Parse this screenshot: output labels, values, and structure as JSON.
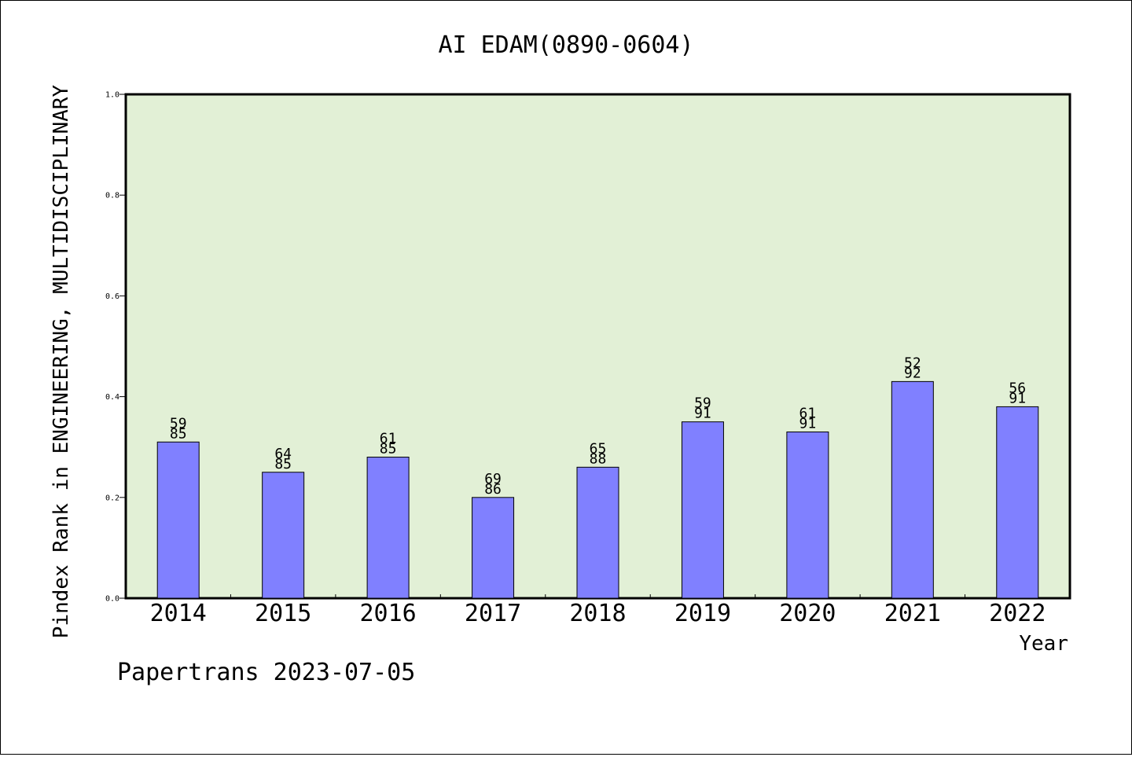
{
  "chart_data": {
    "type": "bar",
    "title": "AI EDAM(0890-0604)",
    "xlabel": "Year",
    "ylabel": "Pindex Rank in ENGINEERING, MULTIDISCIPLINARY",
    "footer": "Papertrans 2023-07-05",
    "ylim": [
      0,
      1.0
    ],
    "yticks": [
      "0.0",
      "0.2",
      "0.4",
      "0.6",
      "0.8",
      "1.0"
    ],
    "categories": [
      "2014",
      "2015",
      "2016",
      "2017",
      "2018",
      "2019",
      "2020",
      "2021",
      "2022"
    ],
    "values": [
      0.31,
      0.25,
      0.28,
      0.2,
      0.26,
      0.35,
      0.33,
      0.43,
      0.38
    ],
    "rank_labels": [
      "59",
      "64",
      "61",
      "69",
      "65",
      "59",
      "61",
      "52",
      "56"
    ],
    "total_labels": [
      "85",
      "85",
      "85",
      "86",
      "88",
      "91",
      "91",
      "92",
      "91"
    ],
    "grid": false,
    "colors": {
      "bar": "#8080ff",
      "plot_background": "#e2f0d6",
      "axis": "#000000"
    }
  }
}
